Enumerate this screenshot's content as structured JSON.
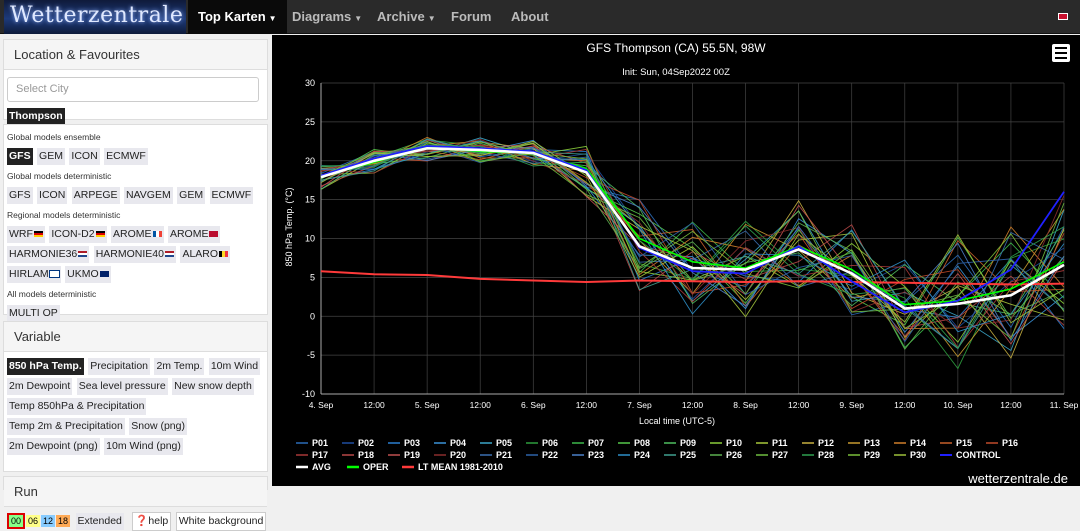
{
  "topbar": {
    "logo": "Wetterzentrale",
    "nav": [
      {
        "label": "Top Karten",
        "active": true,
        "dropdown": true
      },
      {
        "label": "Diagrams",
        "dropdown": true
      },
      {
        "label": "Archive",
        "dropdown": true
      },
      {
        "label": "Forum"
      },
      {
        "label": "About"
      }
    ],
    "flag_icon": "uk-flag-icon"
  },
  "location": {
    "title": "Location & Favourites",
    "placeholder": "Select City",
    "selected": "Thompson"
  },
  "models": {
    "groups": [
      {
        "label": "Global models ensemble",
        "items": [
          "GFS",
          "GEM",
          "ICON",
          "ECMWF"
        ],
        "selected": "GFS"
      },
      {
        "label": "Global models deterministic",
        "items": [
          "GFS",
          "ICON",
          "ARPEGE",
          "NAVGEM",
          "GEM",
          "ECMWF"
        ]
      },
      {
        "label": "Regional models deterministic",
        "items": [
          "WRF",
          "ICON-D2",
          "AROME",
          "AROME",
          "HARMONIE36",
          "HARMONIE40",
          "ALARO",
          "HIRLAM",
          "UKMO"
        ]
      },
      {
        "label": "All models deterministic",
        "items": [
          "MULTI OP"
        ]
      }
    ]
  },
  "variable": {
    "title": "Variable",
    "items": [
      "850 hPa Temp.",
      "Precipitation",
      "2m Temp.",
      "10m Wind",
      "2m Dewpoint",
      "Sea level pressure",
      "New snow depth",
      "Temp 850hPa & Precipitation",
      "Temp 2m & Precipitation",
      "Snow (png)",
      "2m Dewpoint (png)",
      "10m Wind (png)"
    ],
    "selected": "850 hPa Temp."
  },
  "run": {
    "title": "Run",
    "runs": [
      "00",
      "06",
      "12",
      "18"
    ],
    "selected": "00",
    "buttons": [
      "Extended",
      "help",
      "White background"
    ]
  },
  "chart_data": {
    "type": "line",
    "title": "GFS Thompson (CA) 55.5N, 98W",
    "subtitle": "Init: Sun, 04Sep2022 00Z",
    "ylabel": "850 hPa Temp. (°C)",
    "xlabel": "Local time (UTC-5)",
    "ylim": [
      -10,
      30
    ],
    "yticks": [
      30,
      25,
      20,
      15,
      10,
      5,
      0,
      -5,
      -10
    ],
    "xticks": [
      "4. Sep",
      "12:00",
      "5. Sep",
      "12:00",
      "6. Sep",
      "12:00",
      "7. Sep",
      "12:00",
      "8. Sep",
      "12:00",
      "9. Sep",
      "12:00",
      "10. Sep",
      "12:00",
      "11. Sep"
    ],
    "x_hours": [
      0,
      12,
      24,
      36,
      48,
      60,
      72,
      84,
      96,
      108,
      120,
      132,
      144,
      156,
      168
    ],
    "grid": true,
    "watermark": "wetterzentrale.de",
    "legend_position": "bottom",
    "ensemble_names": [
      "P01",
      "P02",
      "P03",
      "P04",
      "P05",
      "P06",
      "P07",
      "P08",
      "P09",
      "P10",
      "P11",
      "P12",
      "P13",
      "P14",
      "P15",
      "P16",
      "P17",
      "P18",
      "P19",
      "P20",
      "P21",
      "P22",
      "P23",
      "P24",
      "P25",
      "P26",
      "P27",
      "P28",
      "P29",
      "P30"
    ],
    "ensemble_colors": [
      "#2b6cb8",
      "#1f4ea0",
      "#2a7fd0",
      "#3a92d8",
      "#3aa5c8",
      "#2e9e3e",
      "#3cb84a",
      "#56c94a",
      "#4fbf60",
      "#8acd3a",
      "#a8c83a",
      "#c8b040",
      "#c89a30",
      "#d07f2a",
      "#c8602a",
      "#c04a2a",
      "#a83838",
      "#b84848",
      "#c05050",
      "#8a2e2e",
      "#3a6fb0",
      "#2d62a8",
      "#4a80c8",
      "#2d8fc8",
      "#40a090",
      "#5cb050",
      "#6fbd40",
      "#2fa050",
      "#7abf3a",
      "#9ec03a"
    ],
    "hours": [
      0,
      12,
      24,
      36,
      48,
      60,
      72,
      84,
      96,
      108,
      120,
      132,
      144,
      156,
      168
    ],
    "series": [
      {
        "name": "AVG",
        "color": "#ffffff",
        "values": [
          17.9,
          20,
          21.6,
          21.4,
          21,
          18.5,
          9,
          6.2,
          6,
          8.6,
          5.5,
          1,
          1.6,
          2.7,
          6.6
        ]
      },
      {
        "name": "OPER",
        "color": "#00ff00",
        "values": [
          18,
          19.8,
          21.8,
          21.2,
          21,
          19,
          10,
          7,
          6.2,
          9,
          6,
          1.5,
          2,
          3.5,
          7
        ]
      },
      {
        "name": "LT MEAN 1981-2010",
        "color": "#ff3a3a",
        "values": [
          5.8,
          5.4,
          5.3,
          4.8,
          4.6,
          4.4,
          4.6,
          4.5,
          4.4,
          4.5,
          4.4,
          4.3,
          4.2,
          4.1,
          4.2
        ]
      },
      {
        "name": "CONTROL",
        "color": "#2020ff",
        "values": [
          18.1,
          20.3,
          21.9,
          21.6,
          21.2,
          18.8,
          8.8,
          5.8,
          5.5,
          9,
          4.5,
          0.5,
          2,
          6,
          16
        ]
      }
    ]
  }
}
